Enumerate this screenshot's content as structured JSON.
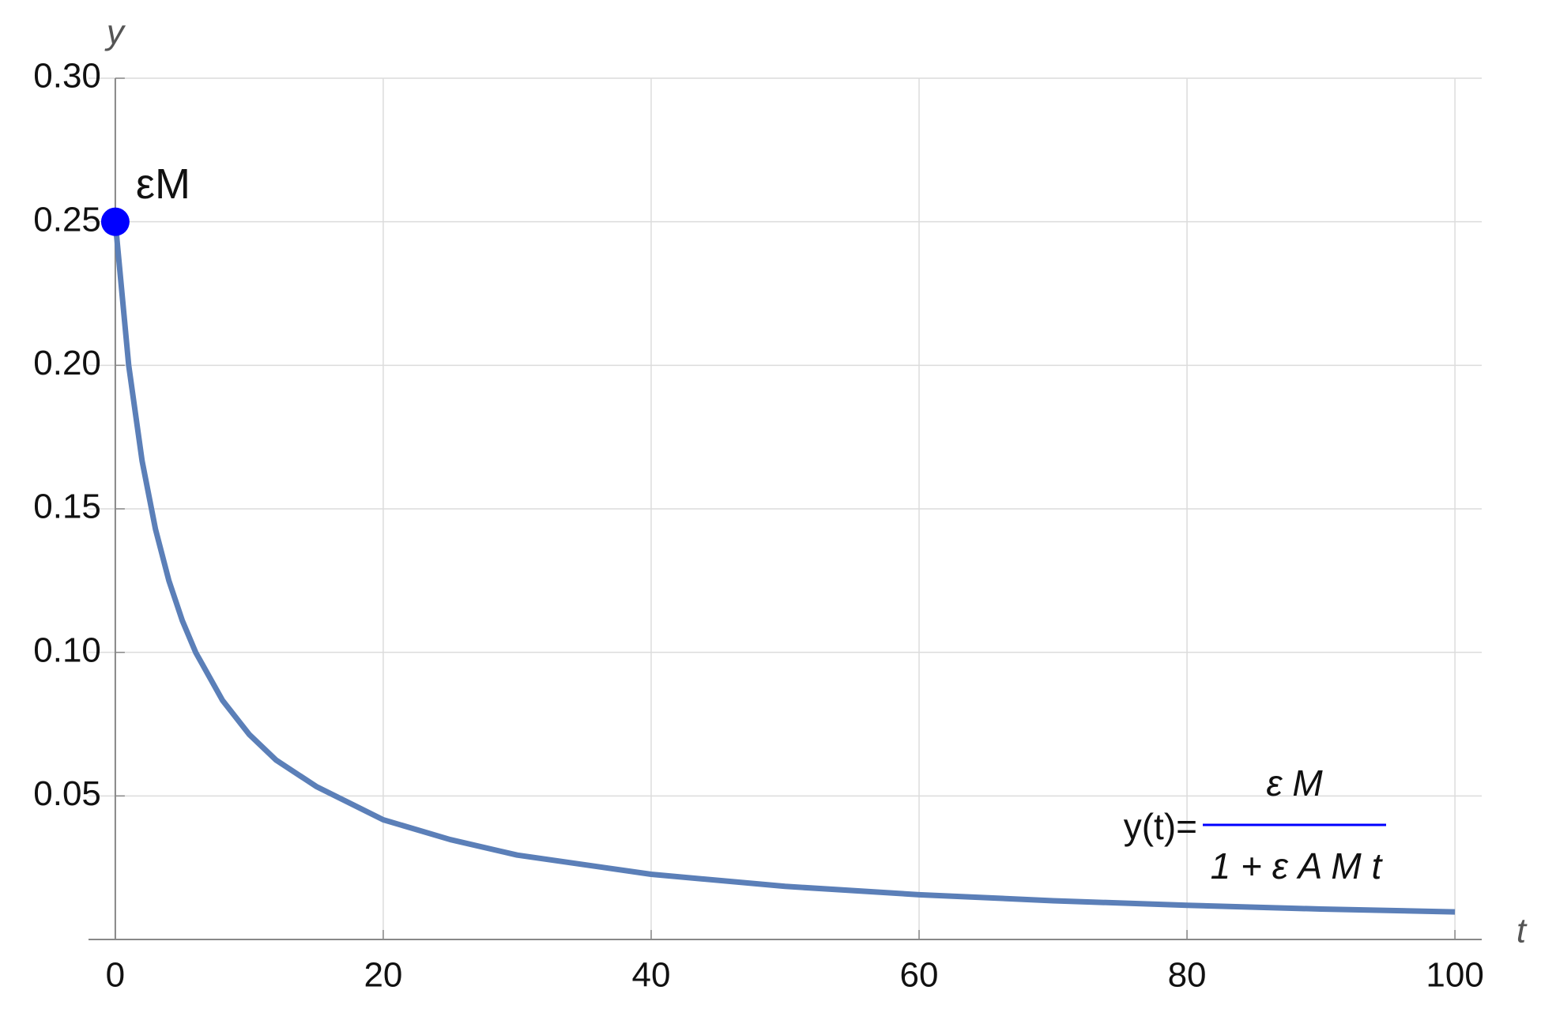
{
  "chart_data": {
    "type": "line",
    "x_label": "t",
    "y_label": "y",
    "x": [
      0,
      1,
      2,
      3,
      4,
      5,
      6,
      8,
      10,
      12,
      15,
      20,
      25,
      30,
      40,
      50,
      60,
      70,
      80,
      90,
      100
    ],
    "series": [
      {
        "color": "#5b7fb8",
        "values": [
          0.25,
          0.2,
          0.1667,
          0.1429,
          0.125,
          0.1111,
          0.1,
          0.0833,
          0.0714,
          0.0625,
          0.0533,
          0.0417,
          0.0348,
          0.0294,
          0.0227,
          0.0185,
          0.0156,
          0.0135,
          0.0119,
          0.0106,
          0.0096
        ]
      }
    ],
    "xlim": [
      -2,
      102
    ],
    "xticks": [
      0,
      20,
      40,
      60,
      80,
      100
    ],
    "ylim": [
      0,
      0.3
    ],
    "yticks": [
      0.05,
      {
        "value": 0.1,
        "label": "0.10"
      },
      0.15,
      {
        "value": 0.2,
        "label": "0.20"
      },
      0.25,
      {
        "value": 0.3,
        "label": "0.30"
      }
    ],
    "grid": true,
    "marker": {
      "x": 0,
      "y": 0.25,
      "label": "εM",
      "color": "#0000ff",
      "label_color": "#ff0000"
    },
    "formula": {
      "lhs": "y(t)=",
      "numerator": "ε M",
      "denominator": "1 + ε A M t",
      "color": "#0000ff"
    }
  }
}
